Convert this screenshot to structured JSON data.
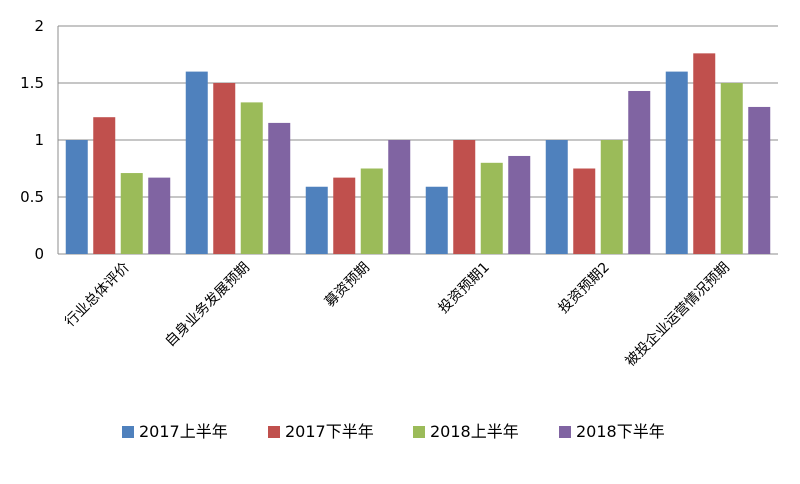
{
  "chart_data": {
    "type": "bar",
    "title": "",
    "xlabel": "",
    "ylabel": "",
    "ylim": [
      0,
      2
    ],
    "yticks": [
      "0",
      "0.5",
      "1",
      "1.5",
      "2"
    ],
    "grid": true,
    "legend_position": "bottom",
    "categories": [
      "行业总体评价",
      "自身业务发展预期",
      "募资预期",
      "投资预期1",
      "投资预期2",
      "被投企业运营情况预期"
    ],
    "series": [
      {
        "name": "2017上半年",
        "color": "#4F81BD",
        "values": [
          1.0,
          1.6,
          0.59,
          0.59,
          1.0,
          1.6
        ]
      },
      {
        "name": "2017下半年",
        "color": "#C0504D",
        "values": [
          1.2,
          1.5,
          0.67,
          1.0,
          0.75,
          1.76
        ]
      },
      {
        "name": "2018上半年",
        "color": "#9BBB59",
        "values": [
          0.71,
          1.33,
          0.75,
          0.8,
          1.0,
          1.5
        ]
      },
      {
        "name": "2018下半年",
        "color": "#8064A2",
        "values": [
          0.67,
          1.15,
          1.0,
          0.86,
          1.43,
          1.29
        ]
      }
    ]
  }
}
